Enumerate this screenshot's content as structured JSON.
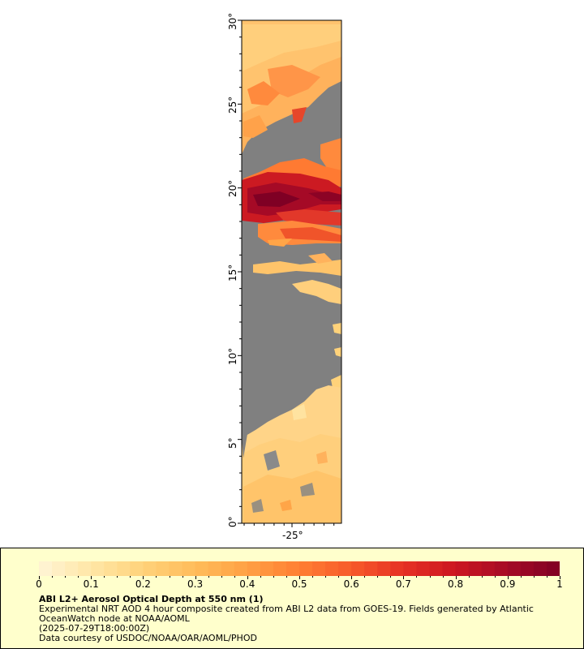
{
  "map": {
    "lat_ticks": [
      "30°",
      "25°",
      "20°",
      "15°",
      "10°",
      "5°",
      "0°"
    ],
    "lon_ticks": [
      "-25°"
    ],
    "colors": {
      "land_or_missing": "#808080",
      "background": "#ffffff",
      "legend_bg": "#ffffcc"
    }
  },
  "colorbar": {
    "min": 0,
    "max": 1,
    "tick_labels": [
      "0",
      "0.1",
      "0.2",
      "0.3",
      "0.4",
      "0.5",
      "0.6",
      "0.7",
      "0.8",
      "0.9",
      "1"
    ],
    "colors": [
      "#fff5d6",
      "#ffe6a6",
      "#ffd27a",
      "#ffbc5a",
      "#ffa044",
      "#ff7f33",
      "#f75a2a",
      "#e63124",
      "#cc1621",
      "#a50a26",
      "#7f0024"
    ]
  },
  "legend": {
    "title": "ABI L2+ Aerosol Optical Depth at 550 nm (1)",
    "line1": "Experimental NRT AOD 4 hour composite created from ABI L2 data from GOES-19. Fields generated by Atlantic OceanWatch node at NOAA/AOML",
    "line2": "(2025-07-29T18:00:00Z)",
    "line3": "Data courtesy of USDOC/NOAA/OAR/AOML/PHOD"
  }
}
